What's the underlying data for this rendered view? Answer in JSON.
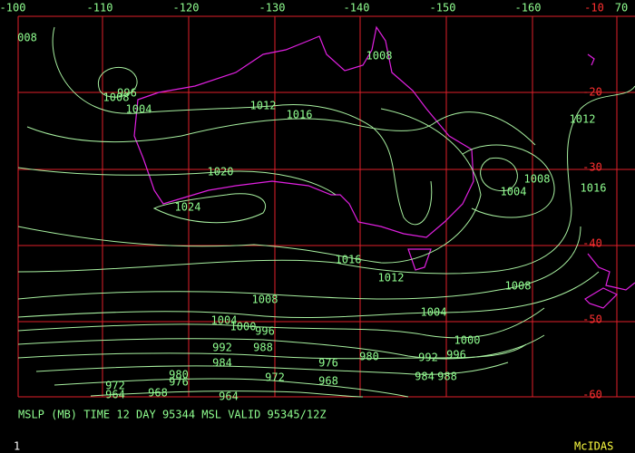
{
  "grid": {
    "lon_labels": [
      "-100",
      "-110",
      "-120",
      "-130",
      "-140",
      "-150",
      "-160",
      "70"
    ],
    "lat_labels": [
      "-10",
      "-20",
      "-30",
      "-40",
      "-50",
      "-60"
    ]
  },
  "isobar_labels": [
    "008",
    "1008",
    "1008",
    "996",
    "1004",
    "1012",
    "1016",
    "1012",
    "1020",
    "1008",
    "1004",
    "1016",
    "1024",
    "1016",
    "1012",
    "1008",
    "1008",
    "1004",
    "1004",
    "1000",
    "996",
    "1000",
    "992",
    "988",
    "992",
    "996",
    "980",
    "984",
    "976",
    "984",
    "988",
    "980",
    "972",
    "976",
    "968",
    "972",
    "968",
    "964",
    "964"
  ],
  "caption": "MSLP (MB) TIME 12 DAY 95344 MSL VALID 95345/12Z",
  "footer": {
    "frame": "1",
    "brand": "McIDAS"
  }
}
